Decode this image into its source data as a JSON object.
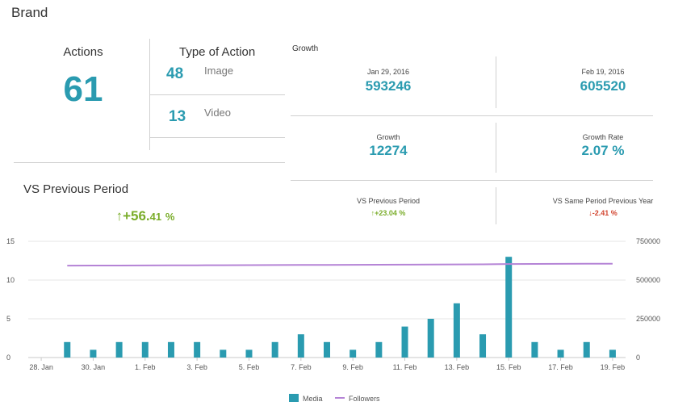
{
  "brand": "Brand",
  "actions": {
    "label": "Actions",
    "value": "61"
  },
  "type_of_action": {
    "title": "Type of Action",
    "items": [
      {
        "count": "48",
        "label": "Image"
      },
      {
        "count": "13",
        "label": "Video"
      }
    ]
  },
  "growth": {
    "title": "Growth",
    "start": {
      "date": "Jan 29, 2016",
      "value": "593246"
    },
    "end": {
      "date": "Feb 19, 2016",
      "value": "605520"
    },
    "growth": {
      "label": "Growth",
      "value": "12274"
    },
    "growth_rate": {
      "label": "Growth Rate",
      "value": "2.07 %"
    }
  },
  "vs_previous": {
    "title": "VS Previous Period",
    "big_arrow": "↑",
    "big_int": "+56.",
    "big_dec": "41",
    "big_pct": "%",
    "prev_period": {
      "label": "VS Previous Period",
      "arrow": "↑",
      "value": "+23.04 %"
    },
    "same_period": {
      "label": "VS Same Period Previous Year",
      "arrow": "↓",
      "value": "-2.41 %"
    }
  },
  "colors": {
    "accent": "#2a9bb0",
    "positive": "#7aad2a",
    "negative": "#d2452f",
    "followers_line": "#b584d6"
  },
  "chart_data": {
    "type": "bar",
    "categories": [
      "28. Jan",
      "29. Jan",
      "30. Jan",
      "31. Jan",
      "1. Feb",
      "2. Feb",
      "3. Feb",
      "4. Feb",
      "5. Feb",
      "6. Feb",
      "7. Feb",
      "8. Feb",
      "9. Feb",
      "10. Feb",
      "11. Feb",
      "12. Feb",
      "13. Feb",
      "14. Feb",
      "15. Feb",
      "16. Feb",
      "17. Feb",
      "18. Feb",
      "19. Feb"
    ],
    "x_tick_labels": [
      "28. Jan",
      "30. Jan",
      "1. Feb",
      "3. Feb",
      "5. Feb",
      "7. Feb",
      "9. Feb",
      "11. Feb",
      "13. Feb",
      "15. Feb",
      "17. Feb",
      "19. Feb"
    ],
    "series": [
      {
        "name": "Media",
        "type": "bar",
        "axis": "left",
        "color": "#2a9bb0",
        "values": [
          null,
          2,
          1,
          2,
          2,
          2,
          2,
          1,
          1,
          2,
          3,
          2,
          1,
          2,
          4,
          5,
          7,
          3,
          13,
          2,
          1,
          2,
          1
        ]
      },
      {
        "name": "Followers",
        "type": "line",
        "axis": "right",
        "color": "#b584d6",
        "values": [
          null,
          593246,
          593500,
          593900,
          594300,
          594700,
          595200,
          595700,
          596200,
          596700,
          597300,
          597900,
          598500,
          599100,
          599700,
          600300,
          601000,
          601700,
          603600,
          604000,
          604500,
          605000,
          605520
        ]
      }
    ],
    "y_left": {
      "ticks": [
        0,
        5,
        10,
        15
      ],
      "lim": [
        0,
        15
      ]
    },
    "y_right": {
      "ticks": [
        "0",
        "250000",
        "500000",
        "750000"
      ],
      "lim": [
        0,
        750000
      ]
    },
    "legend": [
      "Media",
      "Followers"
    ],
    "legend_position": "bottom"
  }
}
